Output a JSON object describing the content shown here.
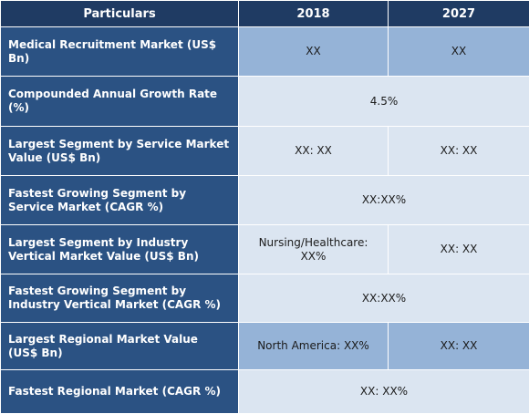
{
  "header": {
    "particulars": "Particulars",
    "col_2018": "2018",
    "col_2027": "2027"
  },
  "rows": [
    {
      "label": "Medical Recruitment Market (US$ Bn)",
      "v2018": "XX",
      "v2027": "XX"
    },
    {
      "label": "Compounded Annual Growth Rate (%)",
      "merged": "4.5%"
    },
    {
      "label": "Largest Segment by Service Market Value (US$ Bn)",
      "v2018": "XX: XX",
      "v2027": "XX: XX"
    },
    {
      "label": "Fastest Growing Segment by Service Market (CAGR %)",
      "merged": "XX:XX%"
    },
    {
      "label": "Largest Segment by Industry Vertical Market Value (US$ Bn)",
      "v2018": "Nursing/Healthcare: XX%",
      "v2027": "XX: XX"
    },
    {
      "label": "Fastest Growing Segment by Industry Vertical Market (CAGR %)",
      "merged": "XX:XX%"
    },
    {
      "label": "Largest Regional Market Value (US$ Bn)",
      "v2018": "North America: XX%",
      "v2027": "XX: XX"
    },
    {
      "label": "Fastest Regional Market (CAGR %)",
      "merged": "XX: XX%"
    }
  ],
  "colors": {
    "header_bg": "#1f3b63",
    "label_bg": "#2b5283",
    "value_dark_bg": "#95b3d7",
    "value_light_bg": "#dbe5f1"
  }
}
